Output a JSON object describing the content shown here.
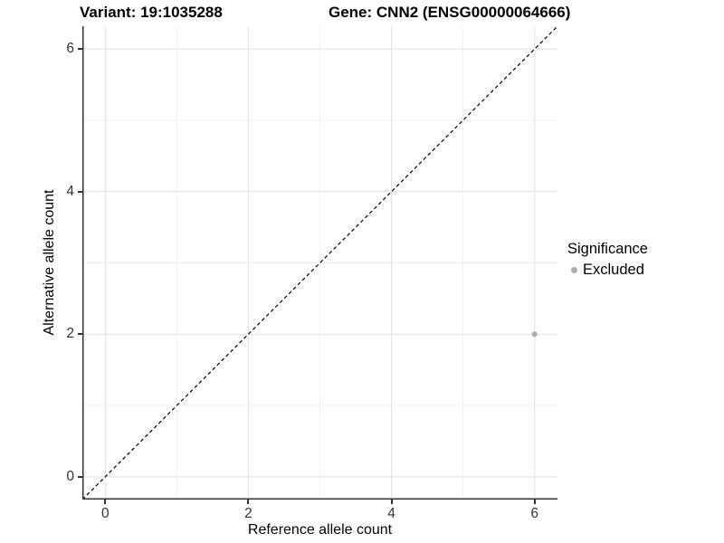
{
  "titles": {
    "variant": "Variant: 19:1035288",
    "gene": "Gene: CNN2 (ENSG00000064666)"
  },
  "axes": {
    "x": {
      "label": "Reference allele count",
      "tick_labels": [
        "0",
        "2",
        "4",
        "6"
      ],
      "tick_values": [
        0,
        2,
        4,
        6
      ]
    },
    "y": {
      "label": "Alternative allele count",
      "tick_labels": [
        "0",
        "2",
        "4",
        "6"
      ],
      "tick_values": [
        0,
        2,
        4,
        6
      ]
    }
  },
  "legend": {
    "title": "Significance",
    "items": [
      {
        "label": "Excluded",
        "color": "#ababab"
      }
    ]
  },
  "colors": {
    "axis_line": "#333333",
    "grid_major": "#e3e3e3",
    "grid_minor": "#efefef",
    "identity_line": "#000000",
    "point": "#ababab"
  },
  "chart_data": {
    "type": "scatter",
    "title": "Variant: 19:1035288 | Gene: CNN2 (ENSG00000064666)",
    "xlabel": "Reference allele count",
    "ylabel": "Alternative allele count",
    "xlim": [
      -0.32,
      6.32
    ],
    "ylim": [
      -0.32,
      6.32
    ],
    "grid": "on",
    "grid_major": [
      0,
      2,
      4,
      6
    ],
    "grid_minor": [
      1,
      3,
      5
    ],
    "legend_position": "right",
    "identity_line": {
      "style": "dashed",
      "color": "#000000",
      "from": -0.32,
      "to": 6.32
    },
    "series": [
      {
        "name": "Excluded",
        "color": "#ababab",
        "point_radius": 3,
        "points": [
          {
            "x": 6,
            "y": 2
          }
        ]
      }
    ]
  }
}
